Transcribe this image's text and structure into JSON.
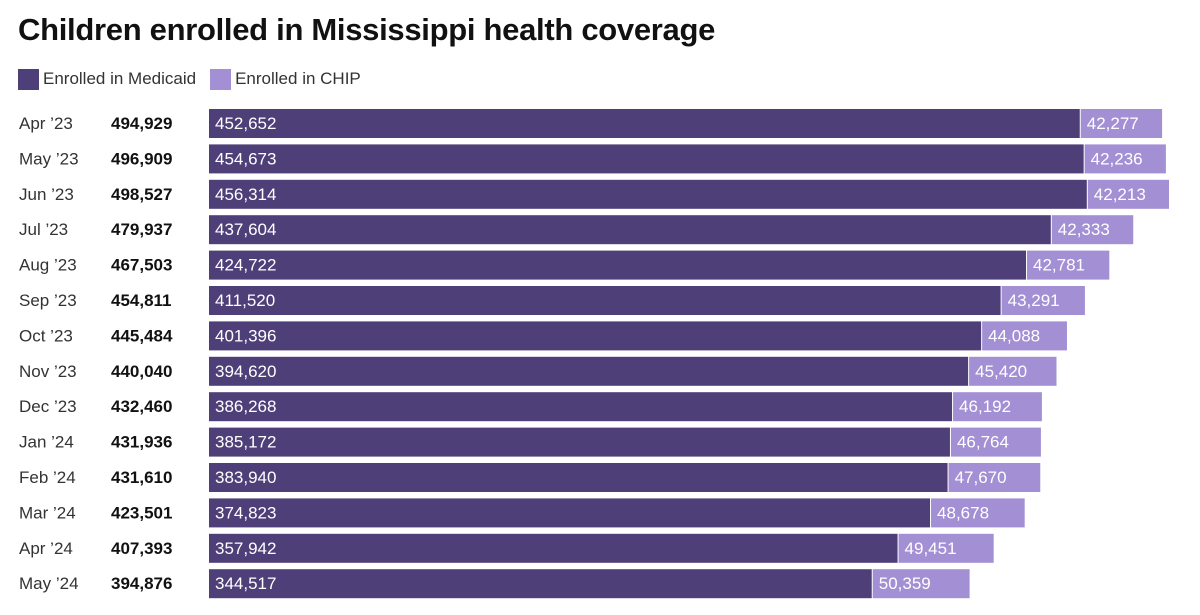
{
  "title": "Children enrolled in Mississippi health coverage",
  "legend": [
    {
      "label": "Enrolled in Medicaid",
      "color": "#4f3f78"
    },
    {
      "label": "Enrolled in CHIP",
      "color": "#a38fd4"
    }
  ],
  "chart_data": {
    "type": "bar",
    "orientation": "horizontal",
    "stacked": true,
    "categories": [
      "Apr ’23",
      "May ’23",
      "Jun ’23",
      "Jul ’23",
      "Aug ’23",
      "Sep ’23",
      "Oct ’23",
      "Nov ’23",
      "Dec ’23",
      "Jan ’24",
      "Feb ’24",
      "Mar ’24",
      "Apr ’24",
      "May ’24"
    ],
    "totals": [
      "494,929",
      "496,909",
      "498,527",
      "479,937",
      "467,503",
      "454,811",
      "445,484",
      "440,040",
      "432,460",
      "431,936",
      "431,610",
      "423,501",
      "407,393",
      "394,876"
    ],
    "series": [
      {
        "name": "Enrolled in Medicaid",
        "color": "#4f3f78",
        "values": [
          452652,
          454673,
          456314,
          437604,
          424722,
          411520,
          401396,
          394620,
          386268,
          385172,
          383940,
          374823,
          357942,
          344517
        ]
      },
      {
        "name": "Enrolled in CHIP",
        "color": "#a38fd4",
        "values": [
          42277,
          42236,
          42213,
          42333,
          42781,
          43291,
          44088,
          45420,
          46192,
          46764,
          47670,
          48678,
          49451,
          50359
        ]
      }
    ],
    "xlim": [
      0,
      498527
    ],
    "grid": false,
    "legend_position": "top-left"
  }
}
